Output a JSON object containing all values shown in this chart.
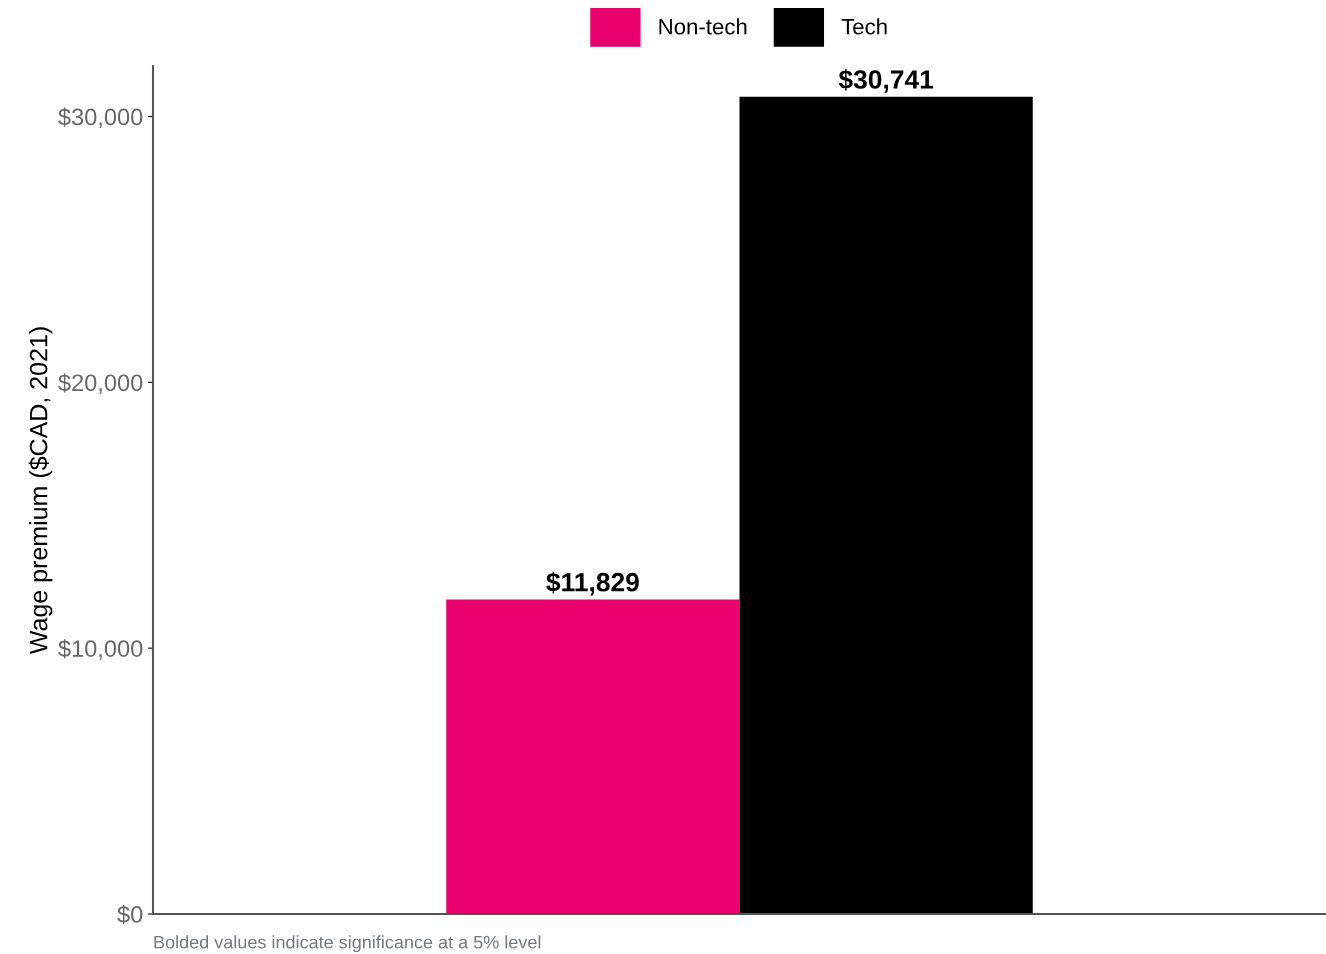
{
  "chart_data": {
    "type": "bar",
    "ylabel": "Wage premium ($CAD, 2021)",
    "categories": [
      null
    ],
    "series": [
      {
        "name": "Non-tech",
        "color": "#e8006f",
        "values": [
          11829
        ],
        "value_labels": [
          "$11,829"
        ]
      },
      {
        "name": "Tech",
        "color": "#000000",
        "values": [
          30741
        ],
        "value_labels": [
          "$30,741"
        ]
      }
    ],
    "ylim": [
      0,
      31900
    ],
    "yticks": [
      {
        "value": 0,
        "label": "$0"
      },
      {
        "value": 10000,
        "label": "$10,000"
      },
      {
        "value": 20000,
        "label": "$20,000"
      },
      {
        "value": 30000,
        "label": "$30,000"
      }
    ],
    "grid": false,
    "legend": "top",
    "annotations": [
      "Bolded values indicate significance at a 5% level"
    ]
  }
}
